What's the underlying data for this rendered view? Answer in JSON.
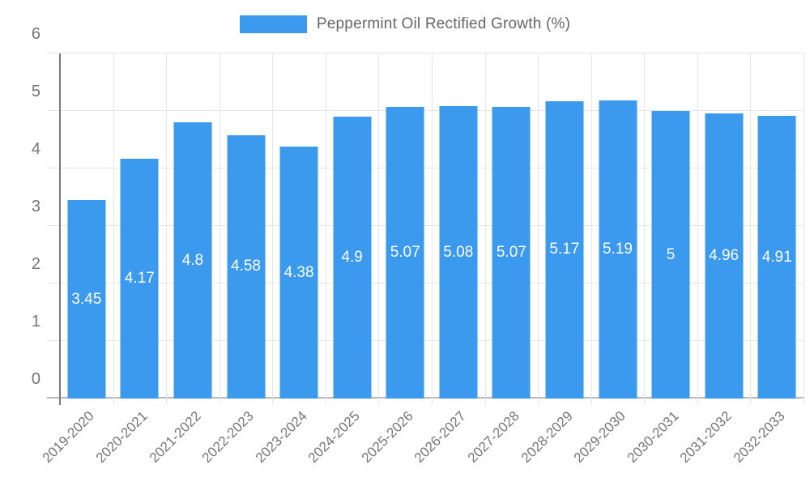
{
  "chart_data": {
    "type": "bar",
    "title": "",
    "legend_label": "Peppermint Oil Rectified Growth (%)",
    "legend_position": "top",
    "categories": [
      "2019-2020",
      "2020-2021",
      "2021-2022",
      "2022-2023",
      "2023-2024",
      "2024-2025",
      "2025-2026",
      "2026-2027",
      "2027-2028",
      "2028-2029",
      "2029-2030",
      "2030-2031",
      "2031-2032",
      "2032-2033"
    ],
    "values": [
      3.45,
      4.17,
      4.8,
      4.58,
      4.38,
      4.9,
      5.07,
      5.08,
      5.07,
      5.17,
      5.19,
      5,
      4.96,
      4.91
    ],
    "value_labels": [
      "3.45",
      "4.17",
      "4.8",
      "4.58",
      "4.38",
      "4.9",
      "5.07",
      "5.08",
      "5.07",
      "5.17",
      "5.19",
      "5",
      "4.96",
      "4.91"
    ],
    "xlabel": "",
    "ylabel": "",
    "ylim": [
      0,
      6
    ],
    "yticks": [
      0,
      1,
      2,
      3,
      4,
      5,
      6
    ],
    "grid": true,
    "colors": {
      "bar": "#3B99EE",
      "grid": "#E6E6E6",
      "zero_line": "#B8B8B8",
      "axis_line": "#7A7A7A",
      "tick_text": "#757575",
      "legend_text": "#666666",
      "bar_label_text": "#FFFFFF"
    }
  }
}
